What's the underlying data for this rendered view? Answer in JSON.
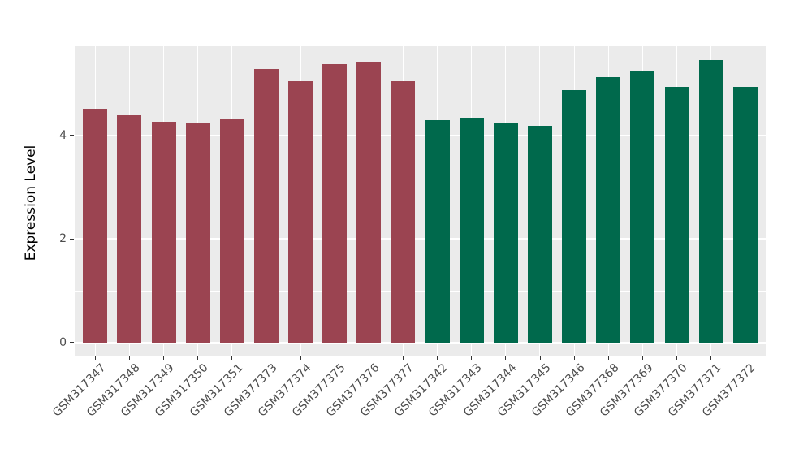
{
  "chart_data": {
    "type": "bar",
    "title": "",
    "xlabel": "",
    "ylabel": "Expression Level",
    "categories": [
      "GSM317347",
      "GSM317348",
      "GSM317349",
      "GSM317350",
      "GSM317351",
      "GSM377373",
      "GSM377374",
      "GSM377375",
      "GSM377376",
      "GSM377377",
      "GSM317342",
      "GSM317343",
      "GSM317344",
      "GSM317345",
      "GSM317346",
      "GSM377368",
      "GSM377369",
      "GSM377370",
      "GSM377371",
      "GSM377372"
    ],
    "values": [
      4.51,
      4.39,
      4.27,
      4.25,
      4.31,
      5.28,
      5.05,
      5.38,
      5.42,
      5.05,
      4.3,
      4.34,
      4.24,
      4.19,
      4.88,
      5.13,
      5.25,
      4.93,
      5.45,
      4.93
    ],
    "colors": [
      "#9B4451",
      "#9B4451",
      "#9B4451",
      "#9B4451",
      "#9B4451",
      "#9B4451",
      "#9B4451",
      "#9B4451",
      "#9B4451",
      "#9B4451",
      "#00694C",
      "#00694C",
      "#00694C",
      "#00694C",
      "#00694C",
      "#00694C",
      "#00694C",
      "#00694C",
      "#00694C",
      "#00694C"
    ],
    "group_colors": {
      "left_group": "#9B4451",
      "right_group": "#00694C"
    },
    "ylim": [
      -0.27,
      5.72
    ],
    "yticks": [
      "0",
      "2",
      "4"
    ],
    "ytick_values": [
      0,
      2,
      4
    ],
    "yticks_minor": [
      1,
      3,
      5
    ],
    "grid": "on",
    "legend": "none",
    "panel_bg": "#EBEBEB",
    "grid_color": "#FFFFFF",
    "axis_text_color": "#4D4D4D",
    "tick_mark_color": "#333333"
  }
}
